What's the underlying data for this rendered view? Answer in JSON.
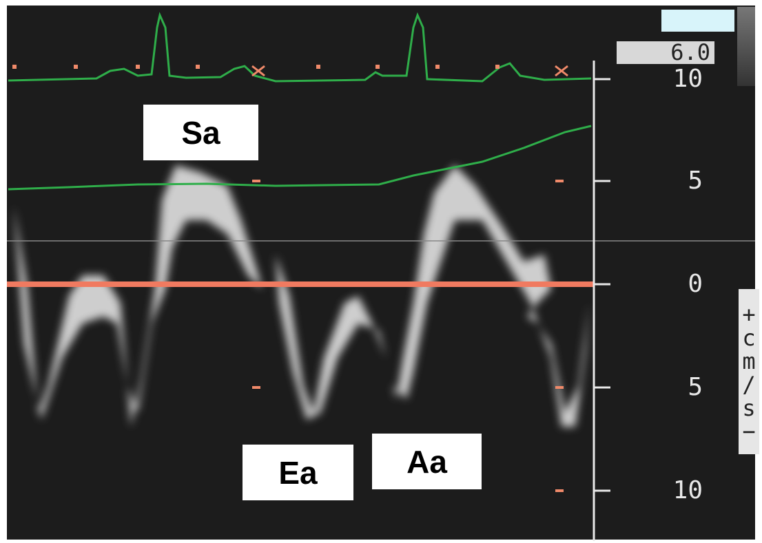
{
  "labels": {
    "sa": "Sa",
    "ea": "Ea",
    "aa": "Aa"
  },
  "depth": "6.0",
  "scale": {
    "ticks": [
      "10",
      "5",
      "0",
      "5",
      "10"
    ],
    "unit": "+cm/s−"
  }
}
